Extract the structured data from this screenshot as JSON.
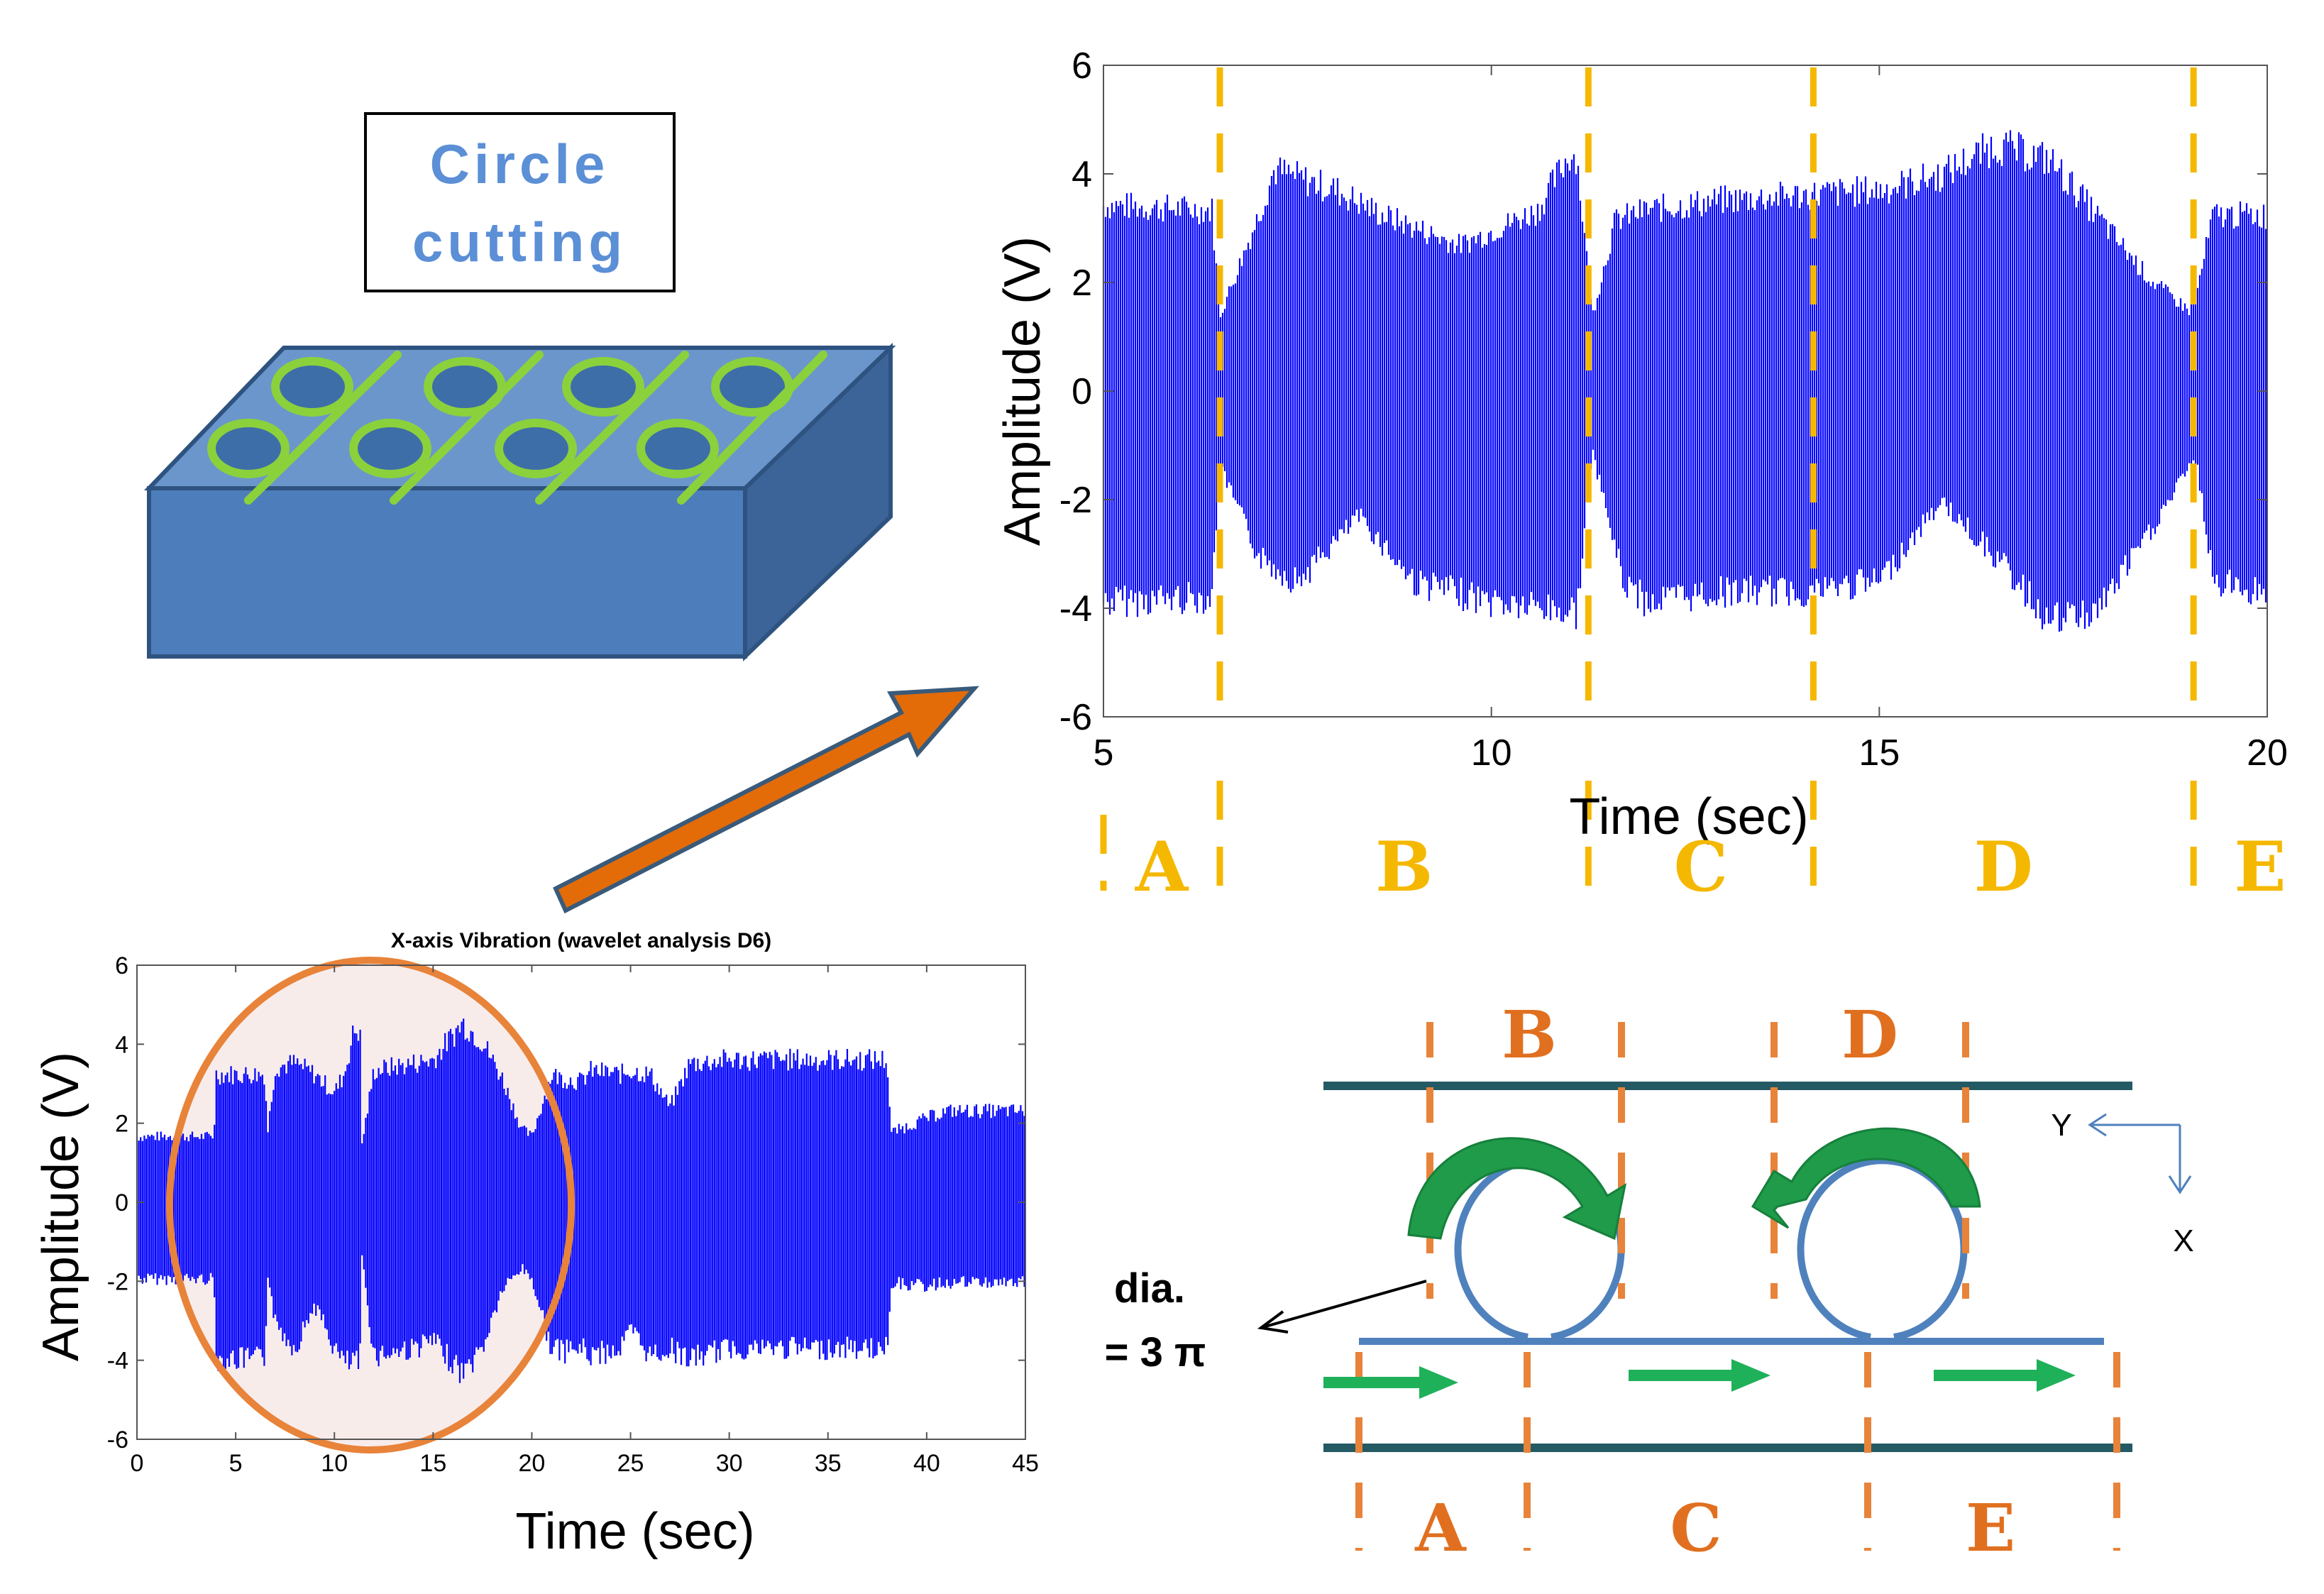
{
  "title_box": {
    "line1": "Circle",
    "line2": "cutting"
  },
  "top_chart": {
    "ylabel": "Amplitude (V)",
    "xlabel": "Time (sec)",
    "xlim": [
      5,
      20
    ],
    "ylim": [
      -6,
      6
    ],
    "xticks": [
      "5",
      "10",
      "15",
      "20"
    ],
    "yticks": [
      "6",
      "4",
      "2",
      "0",
      "-2",
      "-4",
      "-6"
    ],
    "boundaries": [
      6.5,
      11.25,
      14.15,
      19.05
    ],
    "segment_labels": [
      "A",
      "B",
      "C",
      "D",
      "E"
    ],
    "segment_color": "#f5b800"
  },
  "bottom_chart": {
    "title": "X-axis Vibration (wavelet analysis D6)",
    "ylabel": "Amplitude (V)",
    "xlabel": "Time (sec)",
    "xlim": [
      0,
      45
    ],
    "ylim": [
      -6,
      6
    ],
    "xticks": [
      "0",
      "5",
      "10",
      "15",
      "20",
      "25",
      "30",
      "35",
      "40",
      "45"
    ],
    "yticks": [
      "6",
      "4",
      "2",
      "0",
      "-2",
      "-4",
      "-6"
    ],
    "highlight_color": "#e8833a"
  },
  "chart_data": [
    {
      "type": "line",
      "title": "",
      "xlabel": "Time (sec)",
      "ylabel": "Amplitude (V)",
      "xlim": [
        5,
        20
      ],
      "ylim": [
        -6,
        6
      ],
      "series": [
        {
          "name": "upper envelope",
          "x": [
            5,
            6.4,
            6.5,
            7.0,
            7.2,
            8.0,
            8.6,
            9.6,
            10.6,
            11.0,
            11.1,
            11.3,
            11.6,
            12,
            13,
            14,
            15,
            15.8,
            16.5,
            17.2,
            17.8,
            18.5,
            19.0,
            19.1,
            19.3,
            20
          ],
          "values": [
            3.7,
            3.6,
            1.5,
            3.5,
            4.4,
            4.0,
            3.5,
            2.9,
            3.6,
            4.7,
            4.7,
            1.5,
            3.4,
            3.6,
            3.8,
            3.9,
            4.0,
            4.3,
            4.9,
            4.6,
            3.5,
            2.2,
            1.6,
            2.0,
            3.5,
            3.5
          ]
        },
        {
          "name": "lower envelope",
          "x": [
            5,
            6.4,
            6.5,
            7.0,
            7.5,
            8.3,
            9.0,
            10.0,
            11.0,
            11.1,
            11.3,
            11.7,
            12,
            13,
            14,
            15,
            15.8,
            16.5,
            17.2,
            17.8,
            18.5,
            19.0,
            19.1,
            19.3,
            20
          ],
          "values": [
            -4.2,
            -4.1,
            -1.5,
            -3.3,
            -3.8,
            -2.5,
            -3.8,
            -4.2,
            -4.4,
            -4.4,
            -1.2,
            -3.8,
            -4.2,
            -4.0,
            -4.0,
            -3.8,
            -2.2,
            -3.3,
            -4.6,
            -4.4,
            -2.8,
            -1.5,
            -1.5,
            -3.8,
            -4.0
          ]
        }
      ]
    },
    {
      "type": "line",
      "title": "X-axis Vibration (wavelet analysis D6)",
      "xlabel": "Time (sec)",
      "ylabel": "Amplitude (V)",
      "xlim": [
        0,
        45
      ],
      "ylim": [
        -6,
        6
      ],
      "series": [
        {
          "name": "upper envelope",
          "x": [
            0,
            3.9,
            4.0,
            6.5,
            6.6,
            7,
            8,
            9,
            10,
            10.5,
            11,
            11.3,
            11.4,
            12,
            14,
            15,
            16.5,
            17.5,
            18.5,
            19.5,
            20,
            21,
            21.5,
            22.5,
            23,
            24.5,
            25,
            26,
            27,
            28,
            30,
            33,
            37,
            38,
            38.2,
            40,
            41,
            45
          ],
          "values": [
            1.8,
            1.8,
            3.5,
            3.5,
            1.8,
            3.7,
            3.8,
            3.5,
            3.0,
            3.5,
            4.7,
            4.7,
            1.6,
            3.6,
            3.8,
            3.9,
            4.9,
            4.4,
            3.4,
            2.0,
            1.8,
            3.5,
            3.4,
            3.3,
            3.6,
            3.5,
            3.6,
            3.5,
            2.6,
            3.8,
            3.9,
            3.9,
            3.9,
            3.9,
            1.9,
            2.3,
            2.5,
            2.5
          ]
        },
        {
          "name": "lower envelope",
          "x": [
            0,
            3.9,
            4.0,
            6.5,
            6.6,
            7,
            8,
            9,
            10,
            10.5,
            11,
            11.3,
            11.4,
            12,
            14,
            15,
            16.5,
            17.5,
            18.5,
            19.5,
            20,
            21,
            21.5,
            22.5,
            23,
            24.5,
            25,
            26,
            27,
            28,
            30,
            33,
            37,
            38,
            38.2,
            40,
            41,
            45
          ],
          "values": [
            -2.1,
            -2.1,
            -4.3,
            -4.3,
            -1.8,
            -3.3,
            -4.0,
            -2.8,
            -4.0,
            -4.4,
            -4.4,
            -4.4,
            -1.5,
            -4.2,
            -4.0,
            -3.8,
            -4.7,
            -4.0,
            -2.4,
            -1.8,
            -2.1,
            -4.0,
            -4.1,
            -4.0,
            -4.2,
            -4.0,
            -3.5,
            -4.2,
            -4.0,
            -4.3,
            -4.0,
            -4.0,
            -4.0,
            -4.0,
            -2.2,
            -2.3,
            -2.2,
            -2.2
          ]
        }
      ]
    }
  ],
  "diagram": {
    "top_labels": [
      "B",
      "D"
    ],
    "bottom_labels": [
      "A",
      "C",
      "E"
    ],
    "axis_y": "Y",
    "axis_x": "X",
    "dia_line1": "dia.",
    "dia_line2": "= 3 π",
    "label_color": "#e07020"
  },
  "colors": {
    "signal": "#0000ff",
    "box_front": "#4d7ebb",
    "box_top": "#6b96cc",
    "box_side": "#3d6498",
    "cut_lines": "#8bd13c",
    "arrow": "#e36c09",
    "path": "#4f81bd",
    "rail": "#245a63",
    "green_arrow": "#00b050"
  }
}
